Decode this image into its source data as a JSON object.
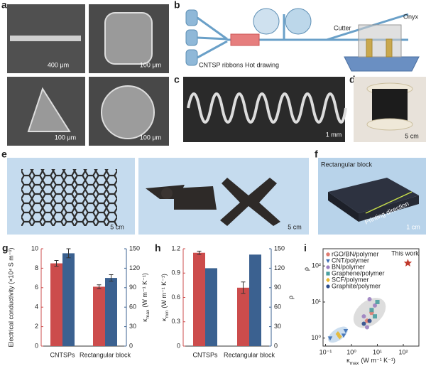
{
  "panels": {
    "a": {
      "label": "a",
      "scale_bars": [
        "400 μm",
        "100 μm",
        "100 μm",
        "100 μm"
      ]
    },
    "b": {
      "label": "b",
      "texts": [
        "CNTSP ribbons",
        "Hot drawing",
        "Cutter",
        "Onyx"
      ]
    },
    "c": {
      "label": "c",
      "scale_bar": "1 mm"
    },
    "d": {
      "label": "d",
      "scale_bar": "5 cm"
    },
    "e": {
      "label": "e",
      "scale_bars": [
        "5 cm",
        "5 cm"
      ]
    },
    "f": {
      "label": "f",
      "title": "Rectangular block",
      "arrow_text": "Printing direction",
      "scale_bar": "1 cm"
    }
  },
  "chart_data": [
    {
      "type": "bar",
      "panel_label": "g",
      "categories": [
        "CNTSPs",
        "Rectangular block"
      ],
      "ylabel": "Electrical conductivity (×10⁴ S m⁻¹)",
      "y2label": {
        "symbol": "κ",
        "subscript": "max",
        "unit": "(W m⁻¹ K⁻¹)"
      },
      "ylim": [
        0,
        10
      ],
      "yticks": [
        0,
        2,
        4,
        6,
        8,
        10
      ],
      "y2lim": [
        0,
        150
      ],
      "y2ticks": [
        0,
        30,
        60,
        90,
        120,
        150
      ],
      "series": [
        {
          "color": "#cc4c4c",
          "values": [
            8.5,
            6.1
          ],
          "errors": [
            0.3,
            0.2
          ]
        },
        {
          "color": "#3b6190",
          "axis": "y2",
          "values": [
            143,
            105
          ],
          "errors": [
            7,
            5
          ]
        }
      ]
    },
    {
      "type": "bar",
      "panel_label": "h",
      "categories": [
        "CNTSPs",
        "Rectangular block"
      ],
      "ylabel": {
        "symbol": "κ",
        "subscript": "min",
        "unit": "(W m⁻¹ K⁻¹)"
      },
      "y2label": "ρ",
      "ylim": [
        0,
        1.2
      ],
      "yticks": [
        0,
        0.3,
        0.6,
        0.9,
        1.2
      ],
      "y2lim": [
        0,
        150
      ],
      "y2ticks": [
        0,
        30,
        60,
        90,
        120,
        150
      ],
      "series": [
        {
          "color": "#cc4c4c",
          "values": [
            1.15,
            0.72
          ],
          "errors": [
            0.02,
            0.07
          ]
        },
        {
          "color": "#3b6190",
          "axis": "y2",
          "values": [
            120,
            141
          ]
        }
      ]
    },
    {
      "type": "scatter",
      "panel_label": "i",
      "xscale": "log",
      "yscale": "log",
      "xlabel": {
        "symbol": "κ",
        "subscript": "max",
        "unit": "(W m⁻¹ K⁻¹)"
      },
      "ylabel": "ρ",
      "xlim": [
        0.08,
        400
      ],
      "ylim": [
        0.6,
        300
      ],
      "xticks": [
        {
          "value": 0.1,
          "label": "10⁻¹"
        },
        {
          "value": 1,
          "label": "10⁰"
        },
        {
          "value": 10,
          "label": "10¹"
        },
        {
          "value": 100,
          "label": "10²"
        }
      ],
      "yticks": [
        {
          "value": 1,
          "label": "10⁰"
        },
        {
          "value": 10,
          "label": "10¹"
        },
        {
          "value": 100,
          "label": "10²"
        }
      ],
      "series": [
        {
          "name": "rGO/BN/polymer",
          "marker": "pentagon",
          "color": "#e07b70",
          "x": [
            4,
            6
          ],
          "values": [
            3,
            5
          ]
        },
        {
          "name": "CNT/polymer",
          "marker": "triangle",
          "color": "#3d6fb5",
          "x": [
            0.15,
            0.6,
            0.5
          ],
          "values": [
            1.0,
            1.6,
            1.2
          ]
        },
        {
          "name": "BN/polymer",
          "marker": "circle",
          "color": "#9b7fc0",
          "x": [
            3,
            5,
            8,
            4
          ],
          "values": [
            4,
            12,
            8,
            2
          ]
        },
        {
          "name": "Graphene/polymer",
          "marker": "square",
          "color": "#4a9fa0",
          "x": [
            6,
            10,
            8
          ],
          "values": [
            6,
            10,
            4
          ]
        },
        {
          "name": "SCF/polymer",
          "marker": "diamond",
          "color": "#e8b830",
          "x": [
            0.3,
            0.35
          ],
          "values": [
            1.3,
            1.1
          ]
        },
        {
          "name": "Graphite/polymer",
          "marker": "circle",
          "color": "#2b4a8a",
          "x": [
            3,
            5
          ],
          "values": [
            2.5,
            3
          ]
        }
      ],
      "highlight": {
        "label": "This work",
        "color": "#c0392b",
        "x": 150,
        "y": 120
      }
    }
  ]
}
